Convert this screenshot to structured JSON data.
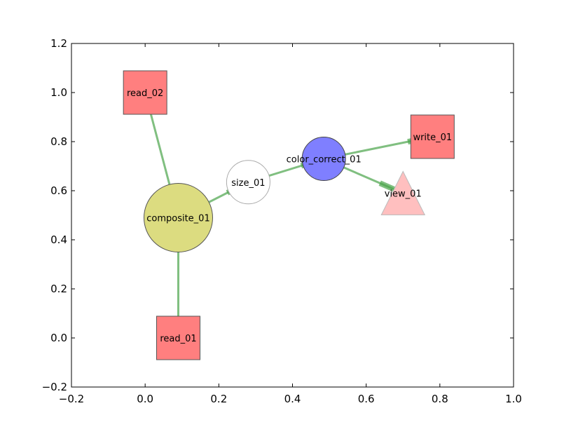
{
  "chart_data": {
    "type": "scatter",
    "title": "",
    "xlabel": "",
    "ylabel": "",
    "xlim": [
      -0.2,
      1.0
    ],
    "ylim": [
      -0.2,
      1.2
    ],
    "xticks": [
      -0.2,
      0.0,
      0.2,
      0.4,
      0.6,
      0.8,
      1.0
    ],
    "xtick_labels": [
      "−0.2",
      "0.0",
      "0.2",
      "0.4",
      "0.6",
      "0.8",
      "1.0"
    ],
    "yticks": [
      -0.2,
      0.0,
      0.2,
      0.4,
      0.6,
      0.8,
      1.0,
      1.2
    ],
    "ytick_labels": [
      "−0.2",
      "0.0",
      "0.2",
      "0.4",
      "0.6",
      "0.8",
      "1.0",
      "1.2"
    ],
    "grid": false,
    "legend": "none",
    "edge_color": "#4aa44a",
    "nodes": [
      {
        "id": "read_02",
        "label": "read_02",
        "x": 0.0,
        "y": 1.0,
        "shape": "square",
        "color": "#ff7f7f",
        "edgecolor": "#555555"
      },
      {
        "id": "read_01",
        "label": "read_01",
        "x": 0.09,
        "y": 0.0,
        "shape": "square",
        "color": "#ff7f7f",
        "edgecolor": "#555555"
      },
      {
        "id": "composite_01",
        "label": "composite_01",
        "x": 0.09,
        "y": 0.49,
        "shape": "circle",
        "size": "large",
        "color": "#dcdc80",
        "edgecolor": "#555555"
      },
      {
        "id": "size_01",
        "label": "size_01",
        "x": 0.28,
        "y": 0.635,
        "shape": "circle",
        "size": "medium",
        "color": "#ffffff",
        "edgecolor": "#aaaaaa"
      },
      {
        "id": "color_correct_01",
        "label": "color_correct_01",
        "x": 0.485,
        "y": 0.73,
        "shape": "circle",
        "size": "medium",
        "color": "#7f7fff",
        "edgecolor": "#444444"
      },
      {
        "id": "write_01",
        "label": "write_01",
        "x": 0.78,
        "y": 0.82,
        "shape": "square",
        "color": "#ff7f7f",
        "edgecolor": "#555555"
      },
      {
        "id": "view_01",
        "label": "view_01",
        "x": 0.7,
        "y": 0.59,
        "shape": "triangle",
        "color": "#ffbfbf",
        "edgecolor": "#bbbbbb"
      }
    ],
    "edges": [
      {
        "source": "read_02",
        "target": "composite_01"
      },
      {
        "source": "read_01",
        "target": "composite_01"
      },
      {
        "source": "composite_01",
        "target": "size_01"
      },
      {
        "source": "size_01",
        "target": "color_correct_01"
      },
      {
        "source": "color_correct_01",
        "target": "write_01"
      },
      {
        "source": "color_correct_01",
        "target": "view_01"
      }
    ]
  }
}
